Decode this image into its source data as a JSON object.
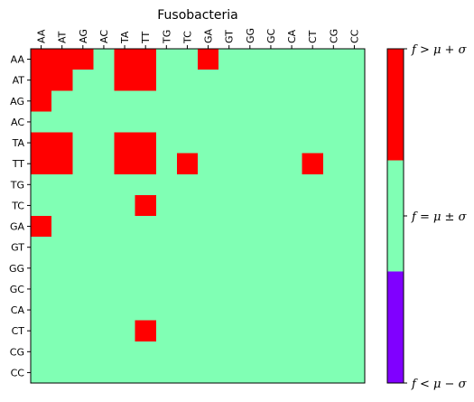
{
  "chart_data": {
    "type": "heatmap",
    "title": "Fusobacteria",
    "x_categories": [
      "AA",
      "AT",
      "AG",
      "AC",
      "TA",
      "TT",
      "TG",
      "TC",
      "GA",
      "GT",
      "GG",
      "GC",
      "CA",
      "CT",
      "CG",
      "CC"
    ],
    "y_categories": [
      "AA",
      "AT",
      "AG",
      "AC",
      "TA",
      "TT",
      "TG",
      "TC",
      "GA",
      "GT",
      "GG",
      "GC",
      "CA",
      "CT",
      "CG",
      "CC"
    ],
    "level_labels": [
      "f < μ − σ",
      "f = μ ± σ",
      "f > μ + σ"
    ],
    "colors": {
      "low": "#8000ff",
      "mid": "#80ffb4",
      "high": "#ff0000"
    },
    "values": [
      [
        2,
        2,
        2,
        1,
        2,
        2,
        1,
        1,
        2,
        1,
        1,
        1,
        1,
        1,
        1,
        1
      ],
      [
        2,
        2,
        1,
        1,
        2,
        2,
        1,
        1,
        1,
        1,
        1,
        1,
        1,
        1,
        1,
        1
      ],
      [
        2,
        1,
        1,
        1,
        1,
        1,
        1,
        1,
        1,
        1,
        1,
        1,
        1,
        1,
        1,
        1
      ],
      [
        1,
        1,
        1,
        1,
        1,
        1,
        1,
        1,
        1,
        1,
        1,
        1,
        1,
        1,
        1,
        1
      ],
      [
        2,
        2,
        1,
        1,
        2,
        2,
        1,
        1,
        1,
        1,
        1,
        1,
        1,
        1,
        1,
        1
      ],
      [
        2,
        2,
        1,
        1,
        2,
        2,
        1,
        2,
        1,
        1,
        1,
        1,
        1,
        2,
        1,
        1
      ],
      [
        1,
        1,
        1,
        1,
        1,
        1,
        1,
        1,
        1,
        1,
        1,
        1,
        1,
        1,
        1,
        1
      ],
      [
        1,
        1,
        1,
        1,
        1,
        2,
        1,
        1,
        1,
        1,
        1,
        1,
        1,
        1,
        1,
        1
      ],
      [
        2,
        1,
        1,
        1,
        1,
        1,
        1,
        1,
        1,
        1,
        1,
        1,
        1,
        1,
        1,
        1
      ],
      [
        1,
        1,
        1,
        1,
        1,
        1,
        1,
        1,
        1,
        1,
        1,
        1,
        1,
        1,
        1,
        1
      ],
      [
        1,
        1,
        1,
        1,
        1,
        1,
        1,
        1,
        1,
        1,
        1,
        1,
        1,
        1,
        1,
        1
      ],
      [
        1,
        1,
        1,
        1,
        1,
        1,
        1,
        1,
        1,
        1,
        1,
        1,
        1,
        1,
        1,
        1
      ],
      [
        1,
        1,
        1,
        1,
        1,
        1,
        1,
        1,
        1,
        1,
        1,
        1,
        1,
        1,
        1,
        1
      ],
      [
        1,
        1,
        1,
        1,
        1,
        2,
        1,
        1,
        1,
        1,
        1,
        1,
        1,
        1,
        1,
        1
      ],
      [
        1,
        1,
        1,
        1,
        1,
        1,
        1,
        1,
        1,
        1,
        1,
        1,
        1,
        1,
        1,
        1
      ],
      [
        1,
        1,
        1,
        1,
        1,
        1,
        1,
        1,
        1,
        1,
        1,
        1,
        1,
        1,
        1,
        1
      ]
    ]
  }
}
